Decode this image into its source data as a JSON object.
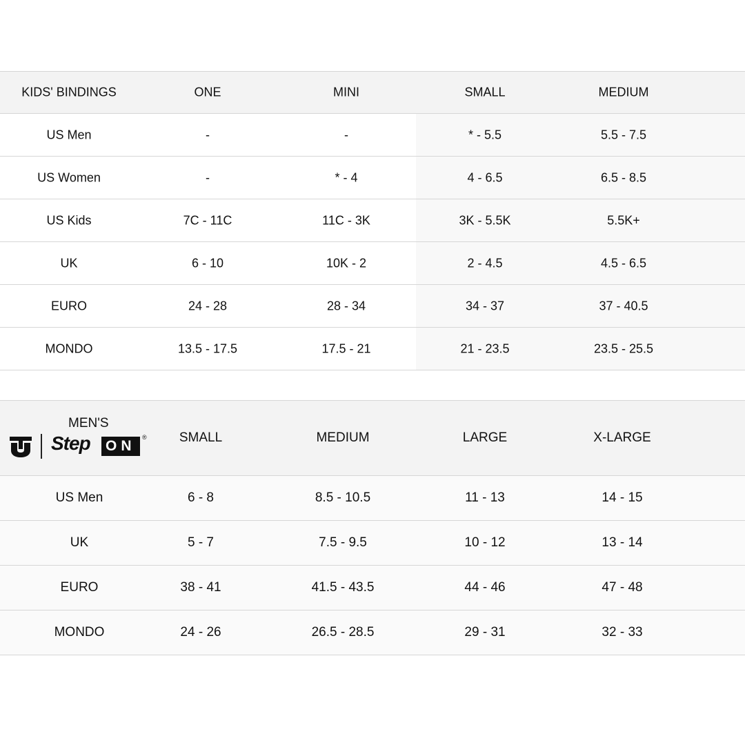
{
  "kids_table": {
    "headers": [
      "KIDS' BINDINGS",
      "ONE",
      "MINI",
      "SMALL",
      "MEDIUM"
    ],
    "rows": [
      [
        "US Men",
        "-",
        "-",
        "* - 5.5",
        "5.5 - 7.5"
      ],
      [
        "US Women",
        "-",
        "* - 4",
        "4 - 6.5",
        "6.5 - 8.5"
      ],
      [
        "US Kids",
        "7C - 11C",
        "11C - 3K",
        "3K - 5.5K",
        "5.5K+"
      ],
      [
        "UK",
        "6 - 10",
        "10K - 2",
        "2 - 4.5",
        "4.5 - 6.5"
      ],
      [
        "EURO",
        "24 - 28",
        "28 - 34",
        "34 - 37",
        "37 - 40.5"
      ],
      [
        "MONDO",
        "13.5 - 17.5",
        "17.5 - 21",
        "21 - 23.5",
        "23.5 - 25.5"
      ]
    ]
  },
  "mens_table": {
    "brand": {
      "label": "MEN'S",
      "logo_text": "StepON",
      "logo_step": "Step",
      "logo_on": "ON",
      "registered": "®",
      "logo_icon": "union-u-logo"
    },
    "headers": [
      "SMALL",
      "MEDIUM",
      "LARGE",
      "X-LARGE"
    ],
    "rows": [
      [
        "US Men",
        "6 - 8",
        "8.5 - 10.5",
        "11 - 13",
        "14 - 15"
      ],
      [
        "UK",
        "5 - 7",
        "7.5 - 9.5",
        "10 - 12",
        "13 - 14"
      ],
      [
        "EURO",
        "38 - 41",
        "41.5 - 43.5",
        "44 - 46",
        "47 - 48"
      ],
      [
        "MONDO",
        "24 - 26",
        "26.5 - 28.5",
        "29 - 31",
        "32 - 33"
      ]
    ]
  }
}
